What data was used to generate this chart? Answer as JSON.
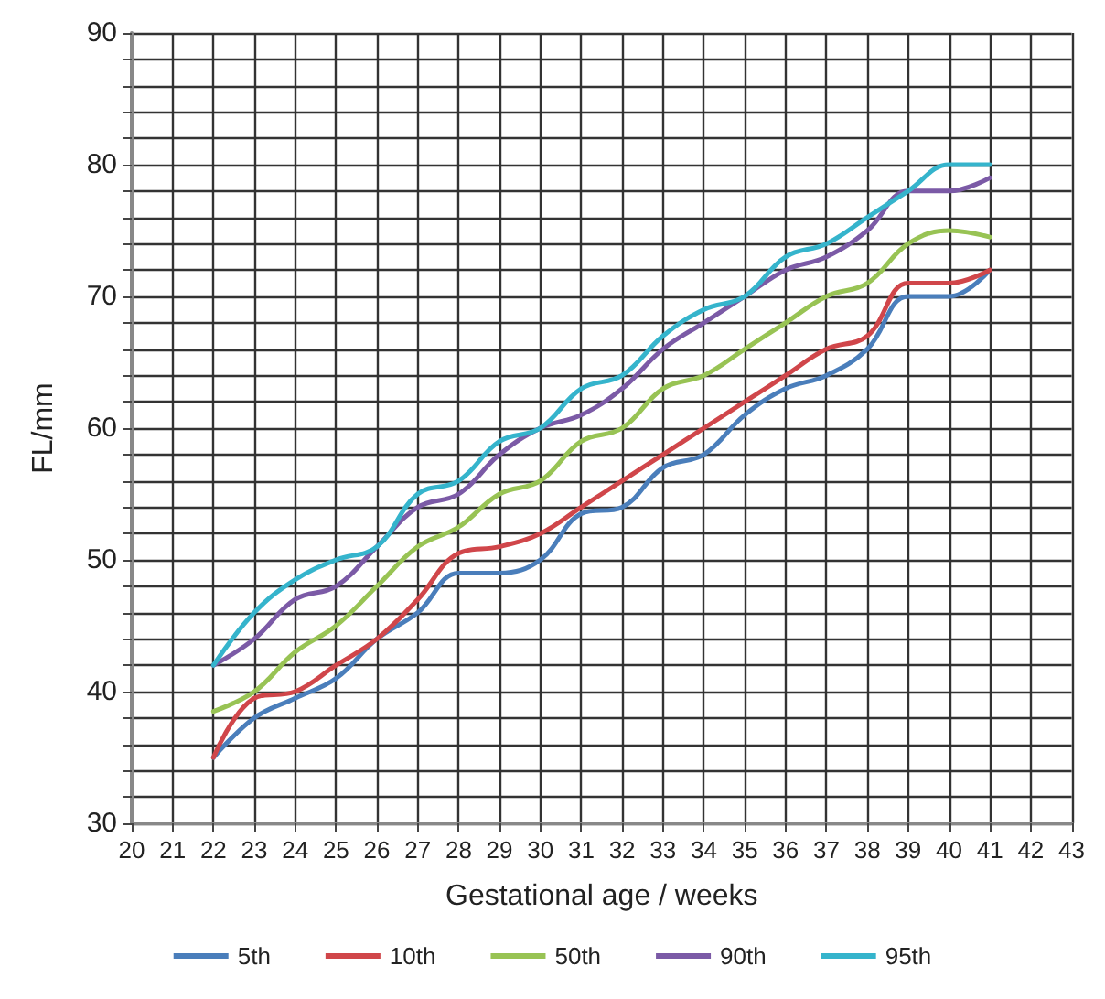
{
  "chart_data": {
    "type": "line",
    "xlabel": "Gestational age / weeks",
    "ylabel": "FL/mm",
    "x": [
      22,
      23,
      24,
      25,
      26,
      27,
      28,
      29,
      30,
      31,
      32,
      33,
      34,
      35,
      36,
      37,
      38,
      39,
      40,
      41
    ],
    "series": [
      {
        "name": "5th",
        "color": "#4a7ebb",
        "values": [
          35,
          38,
          39.5,
          41,
          44,
          46,
          49,
          49,
          50,
          53.5,
          54,
          57,
          58,
          61,
          63,
          64,
          66,
          70,
          70,
          72
        ]
      },
      {
        "name": "10th",
        "color": "#d0464a",
        "values": [
          35,
          39.5,
          40,
          42,
          44,
          47,
          50.5,
          51,
          52,
          54,
          56,
          58,
          60,
          62,
          64,
          66,
          67,
          71,
          71,
          72
        ]
      },
      {
        "name": "50th",
        "color": "#98c354",
        "values": [
          38.5,
          40,
          43,
          45,
          48,
          51,
          52.5,
          55,
          56,
          59,
          60,
          63,
          64,
          66,
          68,
          70,
          71,
          74,
          75,
          74.5
        ]
      },
      {
        "name": "90th",
        "color": "#7b5aa6",
        "values": [
          42,
          44,
          47,
          48,
          51,
          54,
          55,
          58,
          60,
          61,
          63,
          66,
          68,
          70,
          72,
          73,
          75,
          78,
          78,
          79
        ]
      },
      {
        "name": "95th",
        "color": "#35b4cc",
        "values": [
          42,
          46,
          48.5,
          50,
          51,
          55,
          56,
          59,
          60,
          63,
          64,
          67,
          69,
          70,
          73,
          74,
          76,
          78,
          80,
          80
        ]
      }
    ],
    "xlim": [
      20,
      43
    ],
    "xticks": [
      20,
      21,
      22,
      23,
      24,
      25,
      26,
      27,
      28,
      29,
      30,
      31,
      32,
      33,
      34,
      35,
      36,
      37,
      38,
      39,
      40,
      41,
      42,
      43
    ],
    "ylim": [
      30,
      90
    ],
    "yticks": [
      30,
      {
        "value": 32,
        "label": null
      },
      {
        "value": 34,
        "label": null
      },
      {
        "value": 36,
        "label": null
      },
      {
        "value": 38,
        "label": null
      },
      40,
      {
        "value": 42,
        "label": null
      },
      {
        "value": 44,
        "label": null
      },
      {
        "value": 46,
        "label": null
      },
      {
        "value": 48,
        "label": null
      },
      50,
      {
        "value": 52,
        "label": null
      },
      {
        "value": 54,
        "label": null
      },
      {
        "value": 56,
        "label": null
      },
      {
        "value": 58,
        "label": null
      },
      60,
      {
        "value": 62,
        "label": null
      },
      {
        "value": 64,
        "label": null
      },
      {
        "value": 66,
        "label": null
      },
      {
        "value": 68,
        "label": null
      },
      70,
      {
        "value": 72,
        "label": null
      },
      {
        "value": 74,
        "label": null
      },
      {
        "value": 76,
        "label": null
      },
      {
        "value": 78,
        "label": null
      },
      80,
      {
        "value": 82,
        "label": null
      },
      {
        "value": 84,
        "label": null
      },
      {
        "value": 86,
        "label": null
      },
      {
        "value": 88,
        "label": null
      },
      90
    ],
    "grid": true,
    "legend": "bottom",
    "marker": "none",
    "line_style": "solid"
  }
}
